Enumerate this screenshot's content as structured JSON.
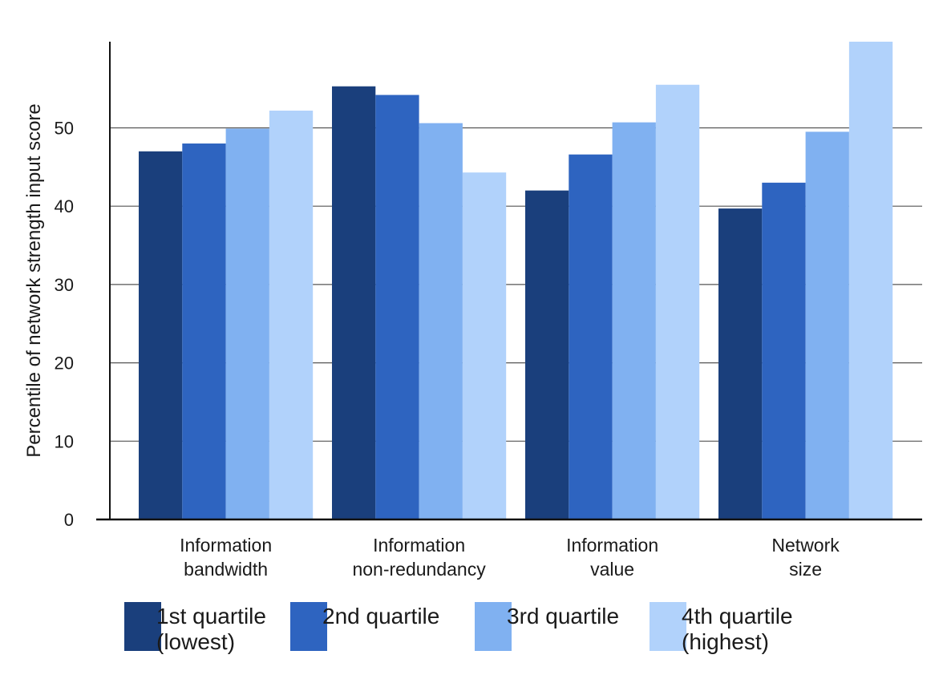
{
  "chart_data": {
    "type": "bar",
    "title": "",
    "xlabel": "",
    "ylabel": "Percentile of network strength input score",
    "ylim": [
      0,
      61
    ],
    "yticks": [
      0,
      10,
      20,
      30,
      40,
      50
    ],
    "grid": true,
    "legend_position": "bottom",
    "categories": [
      [
        "Information",
        "bandwidth"
      ],
      [
        "Information",
        "non-redundancy"
      ],
      [
        "Information",
        "value"
      ],
      [
        "Network",
        "size"
      ]
    ],
    "series": [
      {
        "name": [
          "1st quartile",
          "(lowest)"
        ],
        "color": "#1a3f7c",
        "values": [
          47,
          55.3,
          42,
          39.7
        ]
      },
      {
        "name": [
          "2nd quartile"
        ],
        "color": "#2e64c0",
        "values": [
          48,
          54.2,
          46.6,
          43
        ]
      },
      {
        "name": [
          "3rd quartile"
        ],
        "color": "#80b1f1",
        "values": [
          49.9,
          50.6,
          50.7,
          49.5
        ]
      },
      {
        "name": [
          "4th quartile",
          "(highest)"
        ],
        "color": "#b1d2fb",
        "values": [
          52.2,
          44.3,
          55.5,
          61
        ]
      }
    ]
  }
}
